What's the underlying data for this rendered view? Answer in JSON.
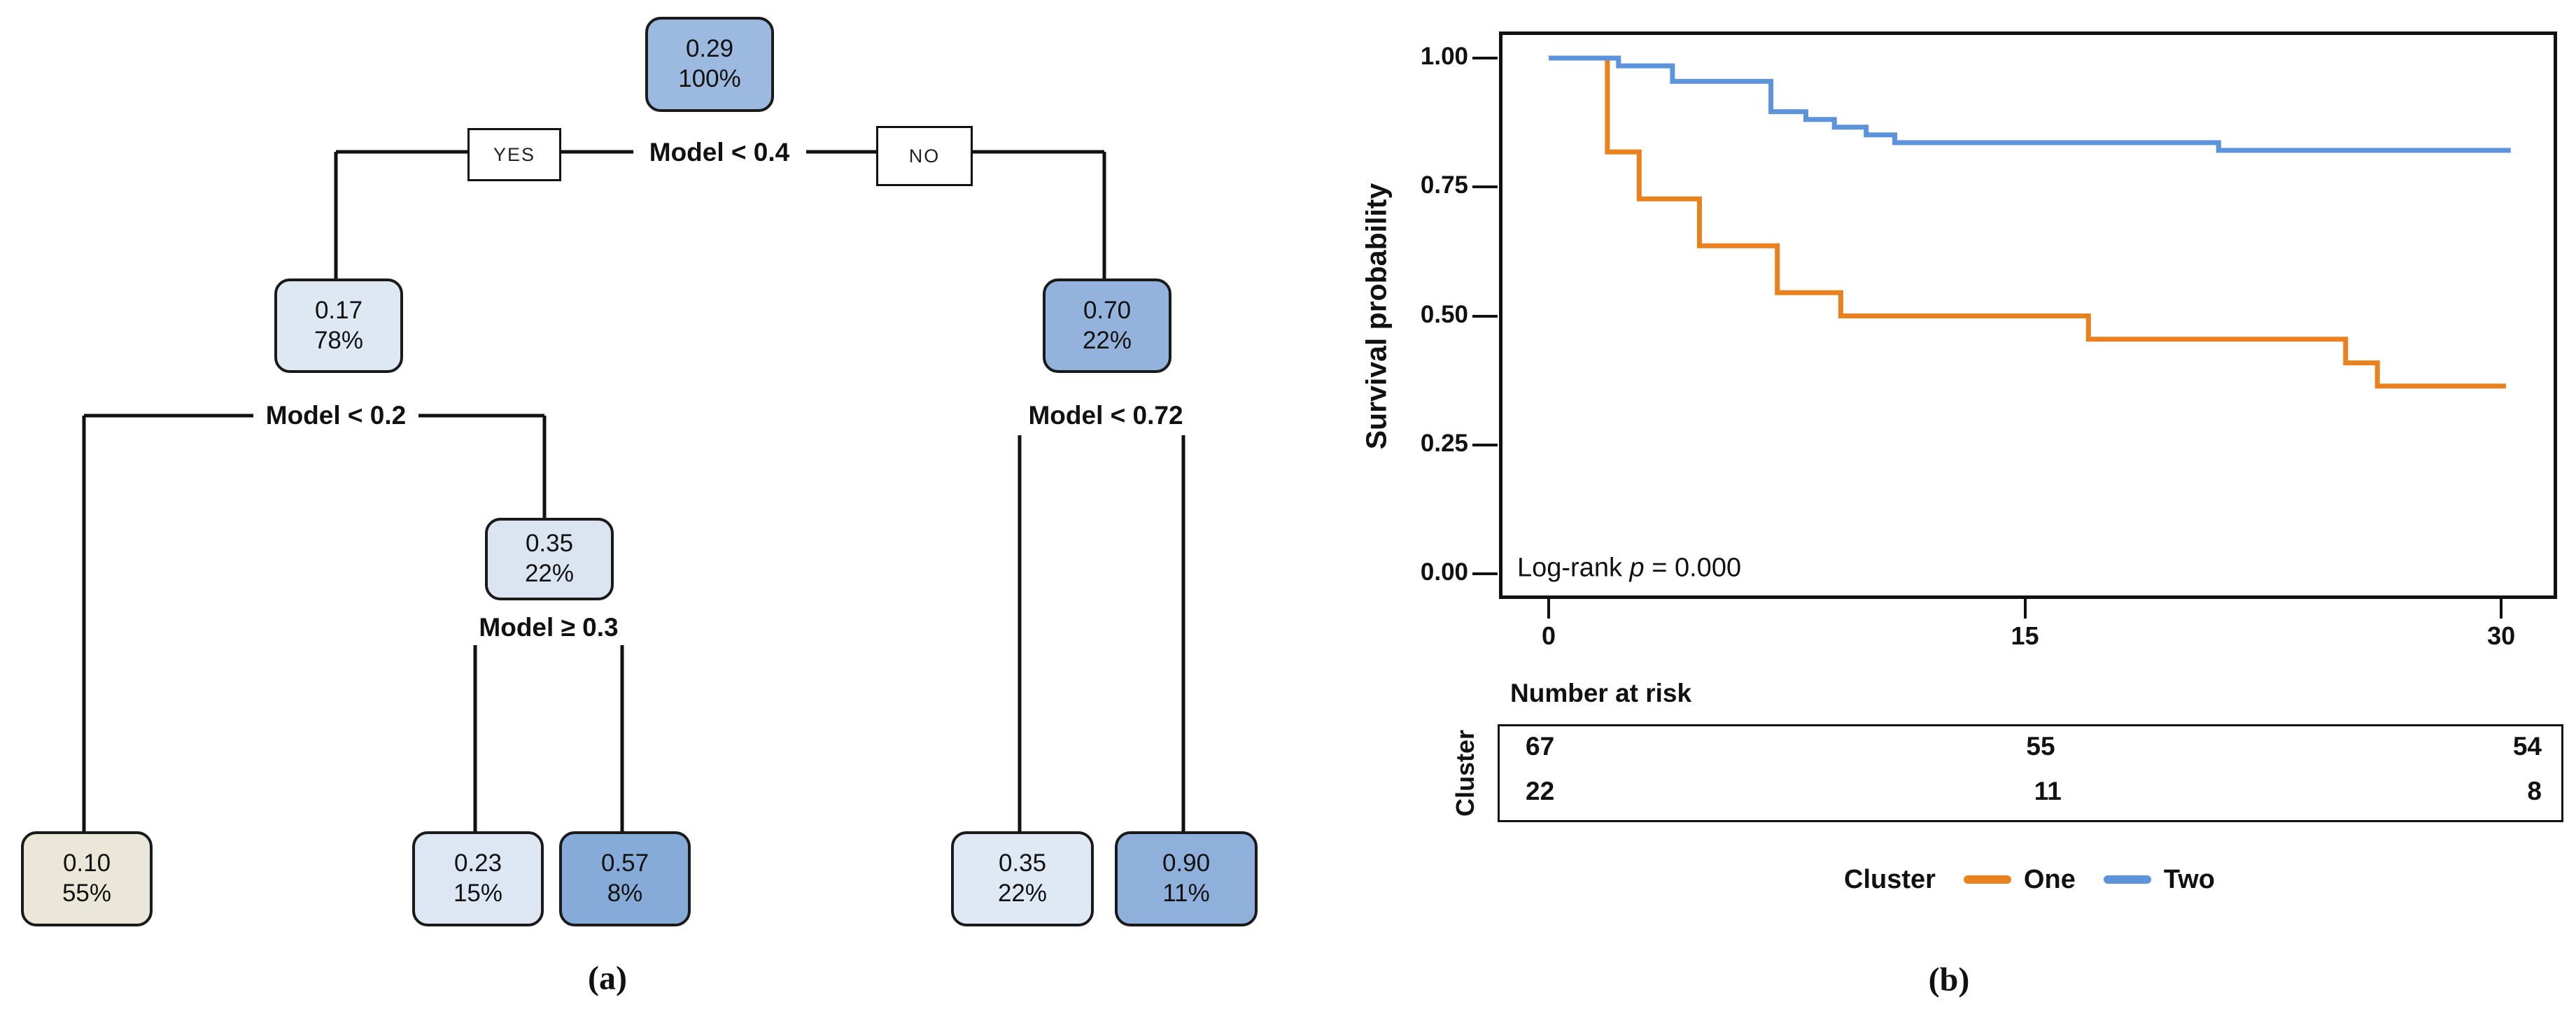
{
  "figure": {
    "caption_a": "(a)",
    "caption_b": "(b)"
  },
  "tree": {
    "branch_labels": {
      "yes": "YES",
      "no": "NO"
    },
    "splits": [
      {
        "label": "Model < 0.4"
      },
      {
        "label": "Model < 0.2"
      },
      {
        "label": "Model ≥ 0.3"
      },
      {
        "label": "Model < 0.72"
      }
    ],
    "nodes": [
      {
        "value": "0.29",
        "pct": "100%",
        "fill": "#9cb9df"
      },
      {
        "value": "0.17",
        "pct": "78%",
        "fill": "#dee8f3"
      },
      {
        "value": "0.70",
        "pct": "22%",
        "fill": "#93b3dd"
      },
      {
        "value": "0.35",
        "pct": "22%",
        "fill": "#dae5f1"
      },
      {
        "value": "0.10",
        "pct": "55%",
        "fill": "#eae7d9"
      },
      {
        "value": "0.23",
        "pct": "15%",
        "fill": "#dce7f3"
      },
      {
        "value": "0.57",
        "pct": "8%",
        "fill": "#87abd8"
      },
      {
        "value": "0.35",
        "pct": "22%",
        "fill": "#dfe9f4"
      },
      {
        "value": "0.90",
        "pct": "11%",
        "fill": "#8fb0da"
      }
    ]
  },
  "chart_data": {
    "type": "line",
    "subtype": "kaplan_meier_step",
    "title": "",
    "xlabel": "",
    "ylabel": "Survival probability",
    "xlim": [
      0,
      30
    ],
    "ylim": [
      0,
      1
    ],
    "grid": false,
    "xticks": [
      {
        "v": 0,
        "label": "0"
      },
      {
        "v": 15,
        "label": "15"
      },
      {
        "v": 30,
        "label": "30"
      }
    ],
    "yticks": [
      {
        "v": 1.0,
        "label": "1.00"
      },
      {
        "v": 0.75,
        "label": "0.75"
      },
      {
        "v": 0.5,
        "label": "0.50"
      },
      {
        "v": 0.25,
        "label": "0.25"
      },
      {
        "v": 0.0,
        "label": "0.00"
      }
    ],
    "annotation": {
      "prefix": "Log-rank ",
      "p": "p",
      "rest": " = 0.000"
    },
    "legend": {
      "title": "Cluster",
      "position": "bottom",
      "entries": [
        {
          "name": "One",
          "color": "#e8811e"
        },
        {
          "name": "Two",
          "color": "#5c93db"
        }
      ]
    },
    "series": [
      {
        "name": "One",
        "color": "#e8811e",
        "steps": [
          [
            0,
            1.0
          ],
          [
            1.85,
            1.0
          ],
          [
            1.85,
            0.818
          ],
          [
            2.85,
            0.818
          ],
          [
            2.85,
            0.727
          ],
          [
            4.75,
            0.727
          ],
          [
            4.75,
            0.636
          ],
          [
            7.2,
            0.636
          ],
          [
            7.2,
            0.545
          ],
          [
            9.2,
            0.545
          ],
          [
            9.2,
            0.5
          ],
          [
            17.0,
            0.5
          ],
          [
            17.0,
            0.455
          ],
          [
            25.1,
            0.455
          ],
          [
            25.1,
            0.409
          ],
          [
            26.1,
            0.409
          ],
          [
            26.1,
            0.364
          ],
          [
            30.15,
            0.364
          ]
        ]
      },
      {
        "name": "Two",
        "color": "#5c93db",
        "steps": [
          [
            0,
            1.0
          ],
          [
            2.2,
            1.0
          ],
          [
            2.2,
            0.985
          ],
          [
            3.9,
            0.985
          ],
          [
            3.9,
            0.955
          ],
          [
            7.0,
            0.955
          ],
          [
            7.0,
            0.896
          ],
          [
            8.1,
            0.896
          ],
          [
            8.1,
            0.881
          ],
          [
            9.0,
            0.881
          ],
          [
            9.0,
            0.866
          ],
          [
            10.0,
            0.866
          ],
          [
            10.0,
            0.851
          ],
          [
            10.9,
            0.851
          ],
          [
            10.9,
            0.836
          ],
          [
            21.1,
            0.836
          ],
          [
            21.1,
            0.821
          ],
          [
            30.3,
            0.821
          ]
        ]
      }
    ],
    "risk_table": {
      "title": "Number at risk",
      "row_label": "Cluster",
      "times": [
        0,
        15,
        30
      ],
      "rows": [
        [
          "67",
          "55",
          "54"
        ],
        [
          "22",
          "11",
          "8"
        ]
      ]
    }
  }
}
